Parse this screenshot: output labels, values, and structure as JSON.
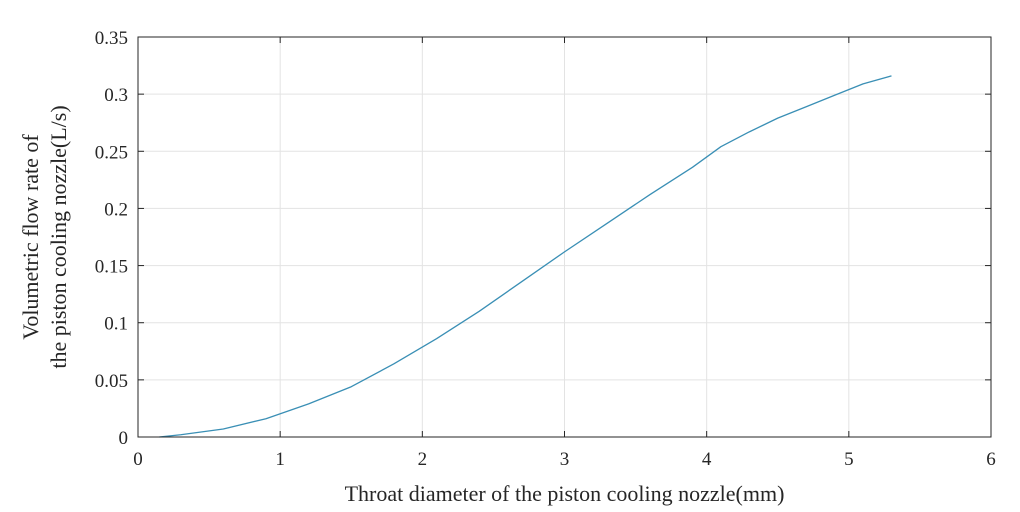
{
  "chart_data": {
    "type": "line",
    "xlabel": "Throat diameter of the piston cooling nozzle(mm)",
    "ylabel_lines": [
      "Volumetric flow rate of",
      "the piston cooling nozzle(L/s)"
    ],
    "xlim": [
      0,
      6
    ],
    "ylim": [
      0,
      0.35
    ],
    "x_ticks": [
      "0",
      "1",
      "2",
      "3",
      "4",
      "5",
      "6"
    ],
    "y_ticks": [
      "0",
      "0.05",
      "0.1",
      "0.15",
      "0.2",
      "0.25",
      "0.3",
      "0.35"
    ],
    "grid": true,
    "series": [
      {
        "color": "#3a8fb5",
        "x": [
          0.15,
          0.3,
          0.6,
          0.9,
          1.2,
          1.5,
          1.8,
          2.1,
          2.4,
          2.7,
          3.0,
          3.3,
          3.6,
          3.9,
          4.1,
          4.3,
          4.5,
          4.7,
          4.9,
          5.1,
          5.3
        ],
        "y": [
          0.0,
          0.002,
          0.007,
          0.016,
          0.029,
          0.044,
          0.064,
          0.086,
          0.11,
          0.136,
          0.162,
          0.187,
          0.212,
          0.236,
          0.254,
          0.267,
          0.279,
          0.289,
          0.299,
          0.309,
          0.316
        ]
      }
    ]
  }
}
